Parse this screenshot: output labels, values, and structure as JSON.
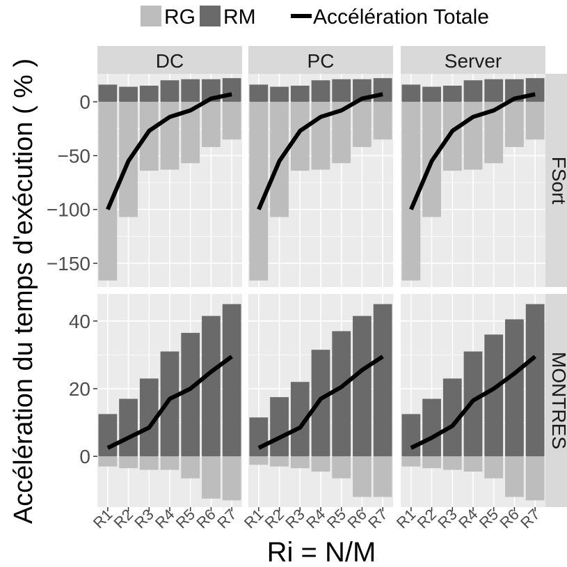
{
  "chart_data": {
    "type": "bar",
    "xlabel": "Ri = N/M",
    "ylabel": "Accélération du temps d'exécution ( % )",
    "categories": [
      "R1",
      "R2",
      "R3",
      "R4",
      "R5",
      "R6",
      "R7"
    ],
    "columns": [
      "DC",
      "PC",
      "Server"
    ],
    "rows": [
      "FSort",
      "MONTRES"
    ],
    "legend": {
      "position": "top",
      "items": [
        {
          "key": "RG",
          "label": "RG",
          "kind": "fill",
          "color": "#bdbdbd"
        },
        {
          "key": "RM",
          "label": "RM",
          "kind": "fill",
          "color": "#6a6a6a"
        },
        {
          "key": "total",
          "label": "Accélération Totale",
          "kind": "line",
          "color": "#000000"
        }
      ]
    },
    "rows_config": {
      "FSort": {
        "ylim": [
          -172,
          26
        ],
        "ticks": [
          0,
          -50,
          -100,
          -150
        ],
        "tick_labels": [
          "0",
          "−50",
          "−100",
          "−150"
        ]
      },
      "MONTRES": {
        "ylim": [
          -15,
          48
        ],
        "ticks": [
          40,
          20,
          0
        ],
        "tick_labels": [
          "40",
          "20",
          "0"
        ]
      }
    },
    "panels": [
      {
        "row": "FSort",
        "col": "DC",
        "RG": [
          -166,
          -107,
          -64,
          -63,
          -57,
          -42,
          -35
        ],
        "RM": [
          16,
          14,
          15,
          20,
          21,
          21,
          22
        ],
        "total": [
          -100,
          -55,
          -27,
          -14,
          -8,
          3,
          7
        ]
      },
      {
        "row": "FSort",
        "col": "PC",
        "RG": [
          -166,
          -107,
          -64,
          -63,
          -57,
          -42,
          -35
        ],
        "RM": [
          16,
          14,
          15,
          20,
          21,
          21,
          22
        ],
        "total": [
          -100,
          -55,
          -27,
          -14,
          -8,
          3,
          7
        ]
      },
      {
        "row": "FSort",
        "col": "Server",
        "RG": [
          -166,
          -107,
          -64,
          -63,
          -57,
          -42,
          -35
        ],
        "RM": [
          16,
          14,
          15,
          20,
          21,
          21,
          22
        ],
        "total": [
          -100,
          -55,
          -27,
          -14,
          -8,
          3,
          7
        ]
      },
      {
        "row": "MONTRES",
        "col": "DC",
        "RG": [
          -3,
          -3.5,
          -4,
          -4,
          -6.5,
          -12.5,
          -13
        ],
        "RM": [
          12.5,
          17,
          23,
          31,
          36.5,
          41.5,
          45
        ],
        "total": [
          2.5,
          5.5,
          8.5,
          17,
          20,
          25,
          29.5
        ]
      },
      {
        "row": "MONTRES",
        "col": "PC",
        "RG": [
          -2.5,
          -3,
          -3.5,
          -4.5,
          -6.5,
          -12,
          -12
        ],
        "RM": [
          11.5,
          17.5,
          22,
          31.5,
          37,
          41.5,
          45
        ],
        "total": [
          2.5,
          5.5,
          8.5,
          17,
          20.5,
          25.5,
          29.5
        ]
      },
      {
        "row": "MONTRES",
        "col": "Server",
        "RG": [
          -3,
          -3.5,
          -4,
          -4.5,
          -6.5,
          -12,
          -13
        ],
        "RM": [
          12.5,
          17,
          23,
          31,
          36,
          40.5,
          45
        ],
        "total": [
          2.5,
          5.5,
          9,
          16.5,
          20,
          24.5,
          29.5
        ]
      }
    ],
    "grid": true,
    "panel_background": "#ebebeb",
    "strip_background": "#d9d9d9"
  }
}
